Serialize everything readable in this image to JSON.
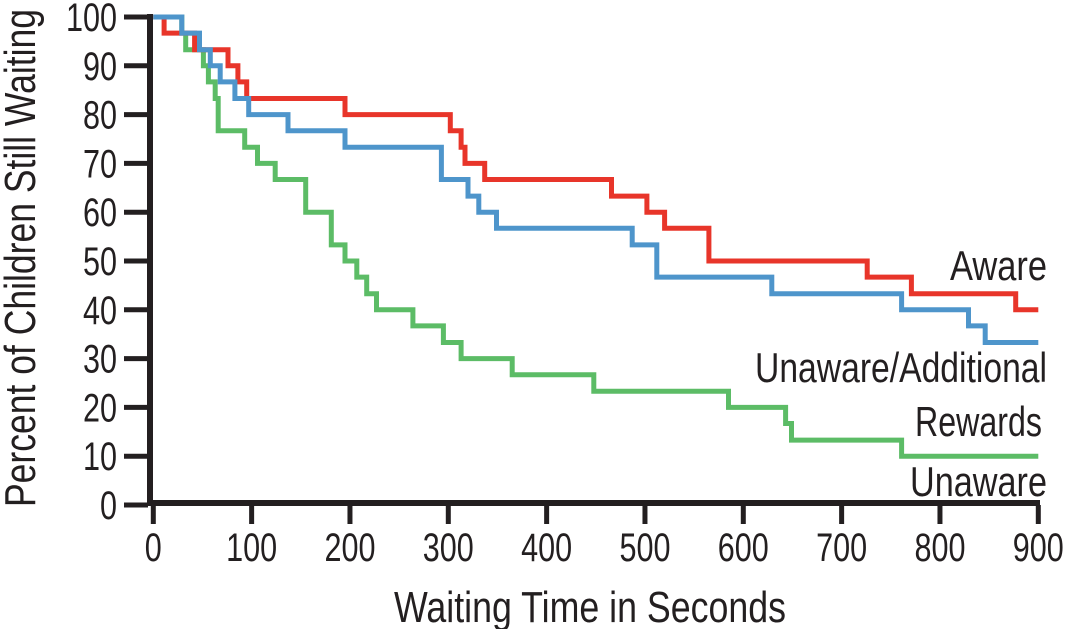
{
  "colors": {
    "background": "#ffffff",
    "axis": "#231f20",
    "aware_line": "#e8352a",
    "unaware_additional_line": "#4e95cb",
    "unaware_line": "#5cbc66",
    "aware_text": "#e8352a",
    "unaware_additional_text": "#3583c3",
    "unaware_text": "#45b457"
  },
  "chart_data": {
    "type": "line",
    "subtype": "step_survival_curves",
    "title": "",
    "xlabel": "Waiting Time in Seconds",
    "ylabel": "Percent of Children Still Waiting",
    "xlim": [
      0,
      900
    ],
    "ylim": [
      0,
      100
    ],
    "xticks": [
      0,
      100,
      200,
      300,
      400,
      500,
      600,
      700,
      800,
      900
    ],
    "yticks": [
      0,
      10,
      20,
      30,
      40,
      50,
      60,
      70,
      80,
      90,
      100
    ],
    "grid": false,
    "legend_position": "inline-right",
    "series": [
      {
        "id": "aware",
        "name": "Aware",
        "color": "#e8352a",
        "steps": [
          [
            0,
            100
          ],
          [
            11,
            96.7
          ],
          [
            42,
            93.3
          ],
          [
            76,
            90
          ],
          [
            86,
            86.7
          ],
          [
            95,
            83.3
          ],
          [
            195,
            80
          ],
          [
            302,
            76.7
          ],
          [
            313,
            73.3
          ],
          [
            317,
            70
          ],
          [
            337,
            66.7
          ],
          [
            466,
            63.3
          ],
          [
            502,
            60
          ],
          [
            520,
            56.7
          ],
          [
            565,
            50
          ],
          [
            726,
            46.7
          ],
          [
            771,
            43.3
          ],
          [
            877,
            40
          ]
        ]
      },
      {
        "id": "unaware-additional-rewards",
        "name": "Unaware/Additional Rewards",
        "color": "#4e95cb",
        "steps": [
          [
            0,
            100
          ],
          [
            29,
            96.7
          ],
          [
            47,
            93.3
          ],
          [
            58,
            90
          ],
          [
            68,
            86.7
          ],
          [
            83,
            83.3
          ],
          [
            97,
            80
          ],
          [
            137,
            76.7
          ],
          [
            195,
            73.3
          ],
          [
            293,
            66.7
          ],
          [
            320,
            63.3
          ],
          [
            331,
            60
          ],
          [
            349,
            56.7
          ],
          [
            487,
            53.3
          ],
          [
            512,
            46.7
          ],
          [
            629,
            43.3
          ],
          [
            761,
            40
          ],
          [
            829,
            36.7
          ],
          [
            846,
            33.3
          ]
        ]
      },
      {
        "id": "unaware",
        "name": "Unaware",
        "color": "#5cbc66",
        "steps": [
          [
            0,
            100
          ],
          [
            29,
            96.7
          ],
          [
            33,
            93.3
          ],
          [
            51,
            90
          ],
          [
            56,
            86.7
          ],
          [
            63,
            83.3
          ],
          [
            66,
            76.7
          ],
          [
            93,
            73.3
          ],
          [
            106,
            70
          ],
          [
            124,
            66.7
          ],
          [
            155,
            60
          ],
          [
            181,
            53.3
          ],
          [
            195,
            50
          ],
          [
            207,
            46.7
          ],
          [
            217,
            43.3
          ],
          [
            227,
            40
          ],
          [
            264,
            36.7
          ],
          [
            295,
            33.3
          ],
          [
            313,
            30
          ],
          [
            365,
            26.7
          ],
          [
            448,
            23.3
          ],
          [
            585,
            20
          ],
          [
            643,
            16.7
          ],
          [
            649,
            13.3
          ],
          [
            761,
            10
          ]
        ]
      }
    ],
    "legend": [
      {
        "text": "Aware",
        "color": "#e8352a"
      },
      {
        "text": "Unaware/Additional",
        "color": "#3583c3"
      },
      {
        "text": "Rewards",
        "color": "#3583c3"
      },
      {
        "text": "Unaware",
        "color": "#45b457"
      }
    ]
  }
}
